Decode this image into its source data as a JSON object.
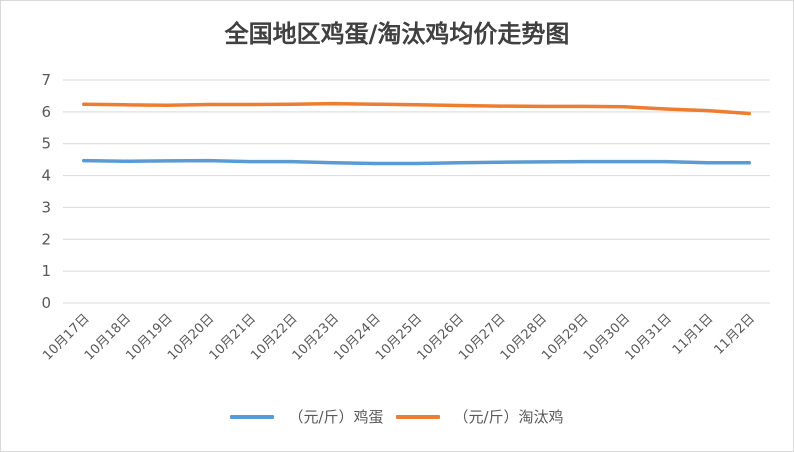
{
  "chart_data": {
    "type": "line",
    "title": "全国地区鸡蛋/淘汰鸡均价走势图",
    "categories": [
      "10月17日",
      "10月18日",
      "10月19日",
      "10月20日",
      "10月21日",
      "10月22日",
      "10月23日",
      "10月24日",
      "10月25日",
      "10月26日",
      "10月27日",
      "10月28日",
      "10月29日",
      "10月30日",
      "10月31日",
      "11月1日",
      "11月2日"
    ],
    "ylim": [
      0,
      7
    ],
    "yticks": [
      0,
      1,
      2,
      3,
      4,
      5,
      6,
      7
    ],
    "grid": true,
    "legend_position": "bottom",
    "series": [
      {
        "name": "（元/斤）鸡蛋",
        "color": "#5b9bd5",
        "values": [
          4.47,
          4.45,
          4.46,
          4.47,
          4.44,
          4.44,
          4.4,
          4.38,
          4.38,
          4.4,
          4.42,
          4.43,
          4.44,
          4.44,
          4.44,
          4.4,
          4.4
        ]
      },
      {
        "name": "（元/斤）淘汰鸡",
        "color": "#ed7d31",
        "values": [
          6.24,
          6.22,
          6.21,
          6.23,
          6.23,
          6.24,
          6.26,
          6.24,
          6.22,
          6.2,
          6.18,
          6.17,
          6.17,
          6.16,
          6.09,
          6.04,
          5.95
        ]
      }
    ]
  }
}
